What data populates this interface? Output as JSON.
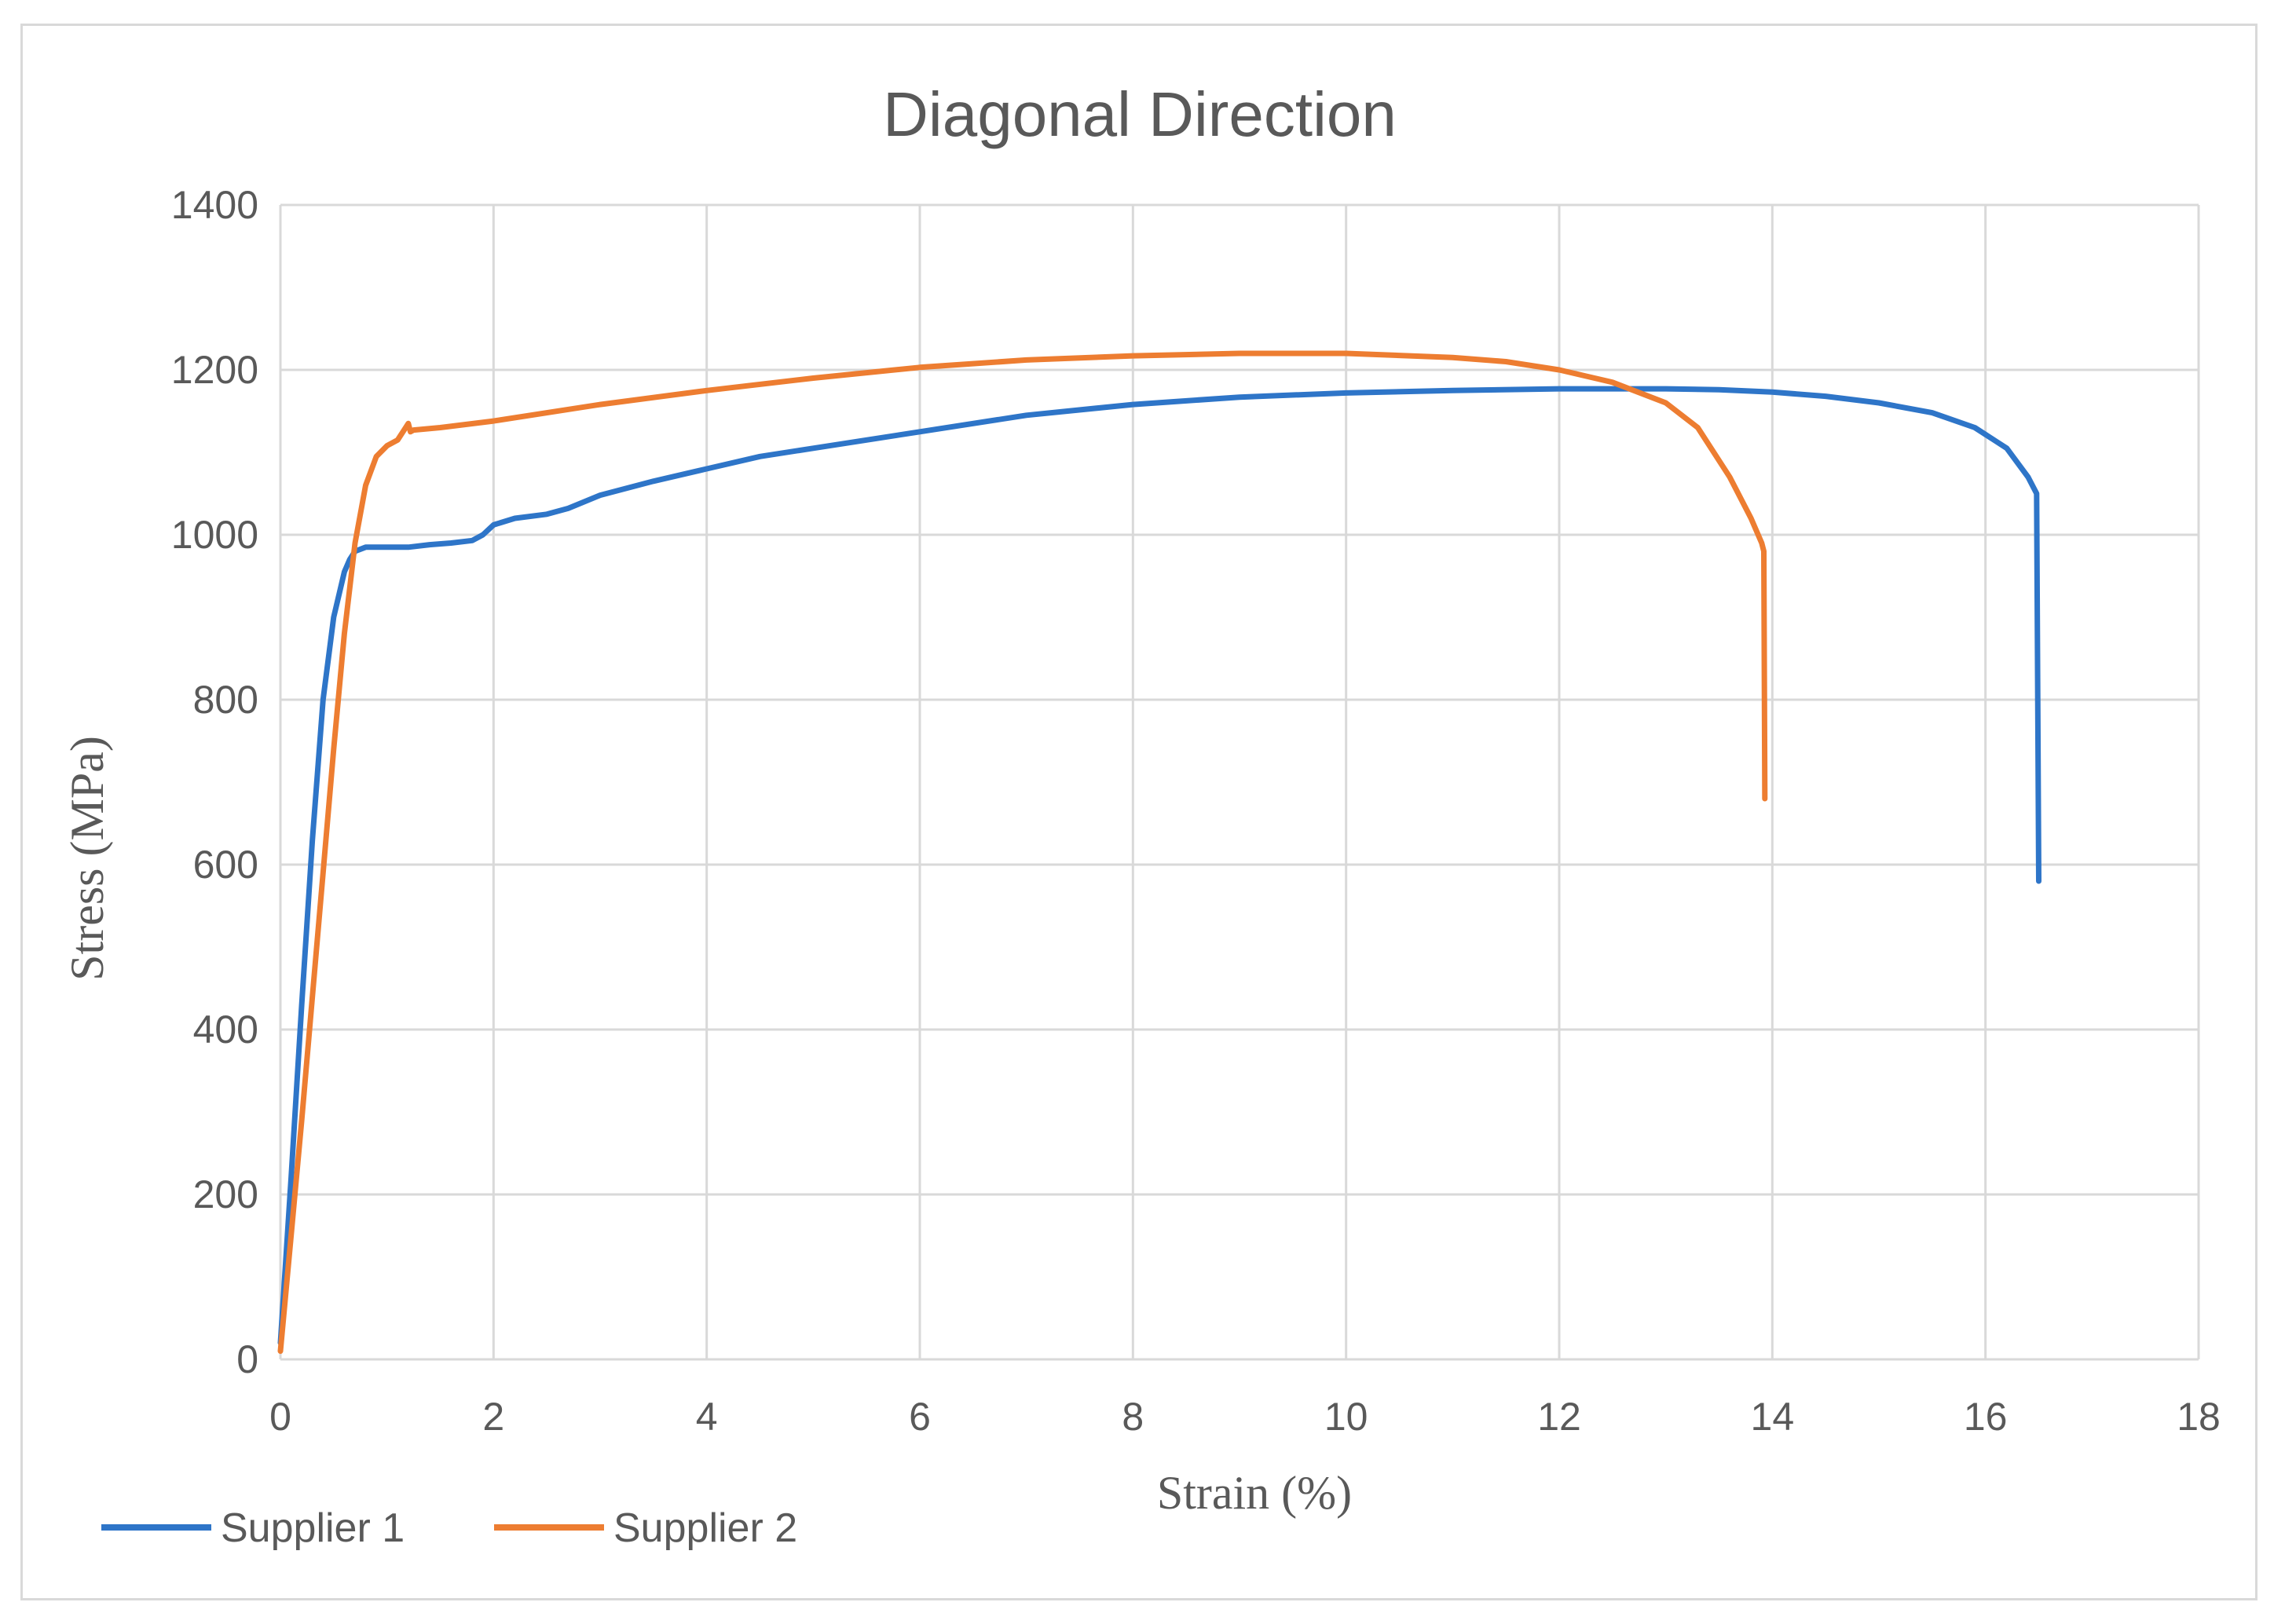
{
  "chart_data": {
    "type": "line",
    "title": "Diagonal Direction",
    "xlabel": "Strain (%)",
    "ylabel": "Stress (MPa)",
    "xlim": [
      0,
      18
    ],
    "ylim": [
      0,
      1400
    ],
    "xticks": [
      0,
      2,
      4,
      6,
      8,
      10,
      12,
      14,
      16,
      18
    ],
    "yticks": [
      0,
      200,
      400,
      600,
      800,
      1000,
      1200,
      1400
    ],
    "grid": true,
    "legend_position": "bottom-left",
    "series": [
      {
        "name": "Supplier 1",
        "color": "#2e75c8",
        "x": [
          0,
          0.1,
          0.2,
          0.3,
          0.4,
          0.5,
          0.6,
          0.65,
          0.7,
          0.8,
          1.0,
          1.2,
          1.4,
          1.6,
          1.8,
          1.9,
          2.0,
          2.2,
          2.5,
          2.7,
          3.0,
          3.5,
          4.0,
          4.5,
          5.0,
          5.5,
          6.0,
          7.0,
          8.0,
          9.0,
          10.0,
          11.0,
          12.0,
          13.0,
          13.5,
          14.0,
          14.5,
          15.0,
          15.5,
          15.9,
          16.2,
          16.4,
          16.48,
          16.5
        ],
        "y": [
          20,
          220,
          430,
          630,
          800,
          900,
          955,
          970,
          980,
          985,
          985,
          985,
          988,
          990,
          993,
          1000,
          1012,
          1020,
          1025,
          1032,
          1048,
          1065,
          1080,
          1095,
          1105,
          1115,
          1125,
          1145,
          1158,
          1167,
          1172,
          1175,
          1177,
          1177,
          1176,
          1173,
          1168,
          1160,
          1148,
          1130,
          1105,
          1070,
          1050,
          580
        ]
      },
      {
        "name": "Supplier 2",
        "color": "#ed7d31",
        "x": [
          0,
          0.1,
          0.2,
          0.3,
          0.4,
          0.5,
          0.6,
          0.7,
          0.8,
          0.9,
          1.0,
          1.1,
          1.2,
          1.22,
          1.25,
          1.5,
          2.0,
          3.0,
          4.0,
          5.0,
          6.0,
          7.0,
          8.0,
          9.0,
          10.0,
          11.0,
          11.5,
          12.0,
          12.5,
          13.0,
          13.3,
          13.6,
          13.8,
          13.9,
          13.92,
          13.93
        ],
        "y": [
          10,
          150,
          290,
          440,
          590,
          740,
          880,
          990,
          1060,
          1095,
          1108,
          1115,
          1135,
          1125,
          1127,
          1130,
          1138,
          1158,
          1175,
          1190,
          1203,
          1212,
          1217,
          1220,
          1220,
          1215,
          1210,
          1200,
          1185,
          1160,
          1130,
          1070,
          1020,
          990,
          980,
          680
        ]
      }
    ]
  }
}
